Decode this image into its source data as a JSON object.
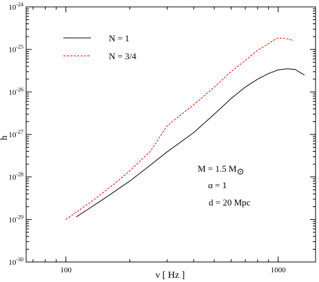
{
  "chart_data": {
    "type": "line",
    "title": "",
    "xlabel": "ν [ Hz ]",
    "ylabel": "ĥ",
    "x_scale": "log",
    "y_scale": "log",
    "xlim": [
      65,
      1500
    ],
    "ylim": [
      1e-30,
      1e-24
    ],
    "grid": false,
    "legend_position": "top-left",
    "x_ticks": [
      {
        "value": 100,
        "label": "100"
      },
      {
        "value": 1000,
        "label": "1000"
      }
    ],
    "y_ticks": [
      {
        "value": 1e-30,
        "base": "10",
        "exp": "-30"
      },
      {
        "value": 1e-29,
        "base": "10",
        "exp": "-29"
      },
      {
        "value": 1e-28,
        "base": "10",
        "exp": "-28"
      },
      {
        "value": 1e-27,
        "base": "10",
        "exp": "-27"
      },
      {
        "value": 1e-26,
        "base": "10",
        "exp": "-26"
      },
      {
        "value": 1e-25,
        "base": "10",
        "exp": "-25"
      },
      {
        "value": 1e-24,
        "base": "10",
        "exp": "-24"
      }
    ],
    "series": [
      {
        "name": "N = 1",
        "color": "#000000",
        "dash": "solid",
        "points": [
          [
            112,
            1.15e-29
          ],
          [
            150,
            3e-29
          ],
          [
            200,
            8e-29
          ],
          [
            250,
            1.9e-28
          ],
          [
            300,
            3.9e-28
          ],
          [
            400,
            1.1e-27
          ],
          [
            500,
            3e-27
          ],
          [
            600,
            7e-27
          ],
          [
            700,
            1.3e-26
          ],
          [
            800,
            2e-26
          ],
          [
            900,
            2.7e-26
          ],
          [
            1000,
            3.3e-26
          ],
          [
            1100,
            3.5e-26
          ],
          [
            1200,
            3.4e-26
          ],
          [
            1280,
            2.8e-26
          ],
          [
            1330,
            2.5e-26
          ]
        ]
      },
      {
        "name": "N = 3/4",
        "color": "#ff0000",
        "dash": "dashed",
        "points": [
          [
            100,
            1e-29
          ],
          [
            130,
            2.5e-29
          ],
          [
            170,
            7e-29
          ],
          [
            200,
            1.4e-28
          ],
          [
            250,
            4e-28
          ],
          [
            300,
            1.6e-27
          ],
          [
            400,
            5e-27
          ],
          [
            500,
            1.3e-26
          ],
          [
            600,
            3e-26
          ],
          [
            700,
            5.5e-26
          ],
          [
            800,
            9.5e-26
          ],
          [
            900,
            1.35e-25
          ],
          [
            980,
            1.8e-25
          ],
          [
            1050,
            1.85e-25
          ],
          [
            1120,
            1.75e-25
          ],
          [
            1180,
            1.6e-25
          ]
        ]
      }
    ],
    "annotations": {
      "mass_label": "M = 1.5 M",
      "mass_subscript": "⊙",
      "alpha_label": "α = 1",
      "distance_label": "d = 20 Mpc"
    }
  }
}
